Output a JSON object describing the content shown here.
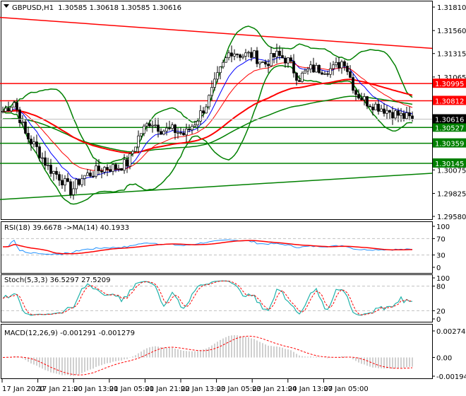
{
  "header": {
    "symbol": "GBPUSD,H1",
    "ohlc": "1.30585 1.30618 1.30585 1.30616"
  },
  "indicators": {
    "rsi_label": "RSI(18) 39.6678  ->MA(14) 40.1933",
    "stoch_label": "Stoch(5,3,3) 36.5297 27.5209",
    "macd_label": "MACD(12,26,9) -0.001291 -0.001279"
  },
  "chart_data": {
    "type": "candlestick",
    "symbol": "GBPUSD",
    "timeframe": "H1",
    "ylim": [
      1.2958,
      1.3181
    ],
    "price_ticks": [
      "1.31810",
      "1.31560",
      "1.31315",
      "1.31065",
      "1.30075",
      "1.29825",
      "1.29580"
    ],
    "time_labels": [
      "17 Jan 2020",
      "17 Jan 21:00",
      "20 Jan 13:00",
      "21 Jan 05:00",
      "21 Jan 21:00",
      "22 Jan 13:00",
      "23 Jan 05:00",
      "23 Jan 21:00",
      "24 Jan 13:00",
      "27 Jan 05:00"
    ],
    "close_path_approx": [
      1.307,
      1.308,
      1.3045,
      1.303,
      1.301,
      1.3,
      1.2985,
      1.3,
      1.3005,
      1.301,
      1.301,
      1.3015,
      1.3045,
      1.306,
      1.305,
      1.305,
      1.3045,
      1.306,
      1.308,
      1.311,
      1.3135,
      1.313,
      1.313,
      1.312,
      1.313,
      1.3125,
      1.3105,
      1.3115,
      1.3115,
      1.3115,
      1.3125,
      1.309,
      1.308,
      1.3075,
      1.307,
      1.3065,
      1.30616
    ],
    "current_price": {
      "value": "1.30616",
      "color": "#000000"
    },
    "levels": [
      {
        "value": "1.30995",
        "color": "#ff0000"
      },
      {
        "value": "1.30812",
        "color": "#ff0000"
      },
      {
        "value": "1.30527",
        "color": "#008000"
      },
      {
        "value": "1.30359",
        "color": "#008000"
      },
      {
        "value": "1.30145",
        "color": "#008000"
      }
    ],
    "trendlines": [
      {
        "color": "#ff0000",
        "start": 1.317,
        "end": 1.3137
      },
      {
        "color": "#008000",
        "start": 1.2976,
        "end": 1.3004
      }
    ],
    "rsi": {
      "ticks": [
        "100",
        "70",
        "30",
        "0"
      ],
      "levels": [
        70,
        30
      ]
    },
    "stoch": {
      "ticks": [
        "100",
        "80",
        "20",
        "0"
      ],
      "levels": [
        80,
        20
      ]
    },
    "macd": {
      "ticks": [
        "0.002745",
        "0.00",
        "-0.001945"
      ],
      "range": [
        -0.001945,
        0.002745
      ]
    },
    "colors": {
      "bull": "#ffffff",
      "bear": "#000000",
      "bands": "#008000",
      "ma_fast": "#0000ff",
      "ma_slow": "#ff0000",
      "rsi": "#1e90ff",
      "rsi_ma": "#ff0000",
      "stoch_main": "#20b2aa",
      "stoch_signal": "#ff0000",
      "macd_hist": "#a0a0a0",
      "macd_signal": "#ff0000"
    }
  }
}
